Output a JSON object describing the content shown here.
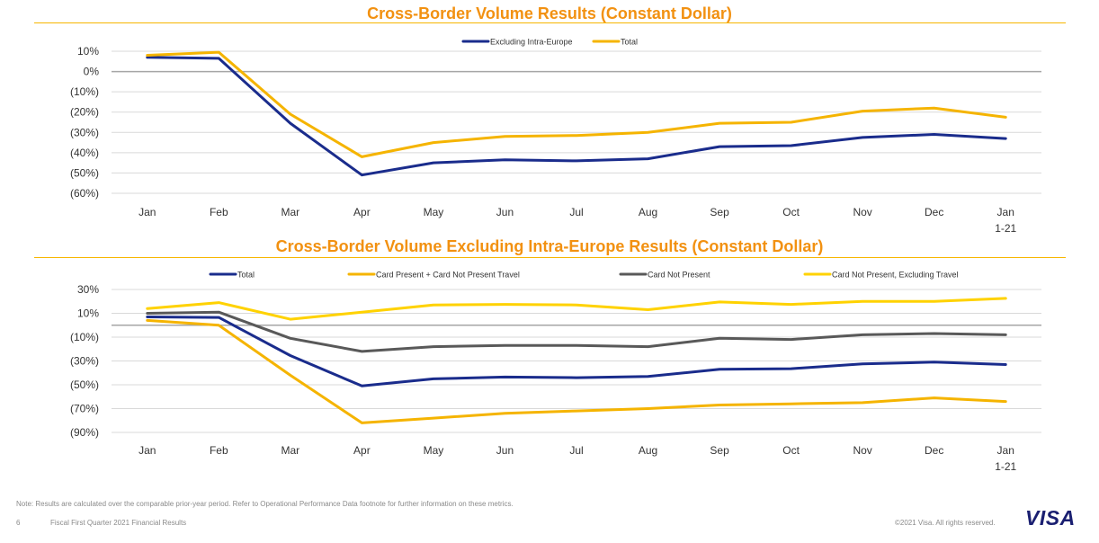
{
  "colors": {
    "title": "#F29111",
    "rule": "#F7B600",
    "navy": "#1A2C8C",
    "gold": "#F5B400",
    "gray": "#595959",
    "yellow": "#FFD200",
    "grid": "#D9D9D9",
    "zero": "#A6A6A6",
    "logo": "#1A1F71"
  },
  "chart_data": [
    {
      "type": "line",
      "title": "Cross-Border Volume Results (Constant Dollar)",
      "categories": [
        "Jan",
        "Feb",
        "Mar",
        "Apr",
        "May",
        "Jun",
        "Jul",
        "Aug",
        "Sep",
        "Oct",
        "Nov",
        "Dec",
        "Jan\n1-21"
      ],
      "yticks": [
        10,
        0,
        -10,
        -20,
        -30,
        -40,
        -50,
        -60
      ],
      "ytick_labels": [
        "10%",
        "0%",
        "(10%)",
        "(20%)",
        "(30%)",
        "(40%)",
        "(50%)",
        "(60%)"
      ],
      "ylim": [
        -60,
        10
      ],
      "grid": true,
      "legend": "top-center",
      "series": [
        {
          "name": "Excluding Intra-Europe",
          "color": "#1A2C8C",
          "values": [
            7,
            6.5,
            -25.5,
            -51,
            -45,
            -43.5,
            -44,
            -43,
            -37,
            -36.5,
            -32.5,
            -31,
            -33
          ]
        },
        {
          "name": "Total",
          "color": "#F5B400",
          "values": [
            8,
            9.5,
            -21,
            -42,
            -35,
            -32,
            -31.5,
            -30,
            -25.5,
            -25,
            -19.5,
            -18,
            -22.5
          ]
        }
      ]
    },
    {
      "type": "line",
      "title": "Cross-Border Volume Excluding Intra-Europe Results (Constant Dollar)",
      "categories": [
        "Jan",
        "Feb",
        "Mar",
        "Apr",
        "May",
        "Jun",
        "Jul",
        "Aug",
        "Sep",
        "Oct",
        "Nov",
        "Dec",
        "Jan\n1-21"
      ],
      "yticks": [
        30,
        10,
        -10,
        -30,
        -50,
        -70,
        -90
      ],
      "ytick_labels": [
        "30%",
        "10%",
        "(10%)",
        "(30%)",
        "(50%)",
        "(70%)",
        "(90%)"
      ],
      "ylim": [
        -90,
        30
      ],
      "grid": true,
      "legend": "top-center",
      "series": [
        {
          "name": "Total",
          "color": "#1A2C8C",
          "values": [
            7,
            6.5,
            -25.5,
            -51,
            -45,
            -43.5,
            -44,
            -43,
            -37,
            -36.5,
            -32.5,
            -31,
            -33
          ]
        },
        {
          "name": "Card Present + Card Not Present Travel",
          "color": "#F5B400",
          "values": [
            4,
            0,
            -42,
            -82,
            -78,
            -74,
            -72,
            -70,
            -67,
            -66,
            -65,
            -61,
            -64
          ]
        },
        {
          "name": "Card Not Present",
          "color": "#595959",
          "values": [
            10,
            11,
            -11,
            -22,
            -18,
            -17,
            -17,
            -18,
            -11,
            -12,
            -8,
            -7,
            -8
          ]
        },
        {
          "name": "Card Not Present, Excluding Travel",
          "color": "#FFD200",
          "values": [
            14,
            19,
            5,
            11,
            17,
            17.5,
            17,
            13,
            19.5,
            17.5,
            20,
            20,
            22.5
          ]
        }
      ]
    }
  ],
  "footer": {
    "note": "Note: Results are calculated over the comparable prior-year period. Refer to Operational Performance Data footnote for further information on these metrics.",
    "page_number": "6",
    "left_text": "Fiscal First Quarter 2021 Financial Results",
    "right_text": "©2021 Visa. All rights reserved.",
    "logo_text": "VISA"
  }
}
